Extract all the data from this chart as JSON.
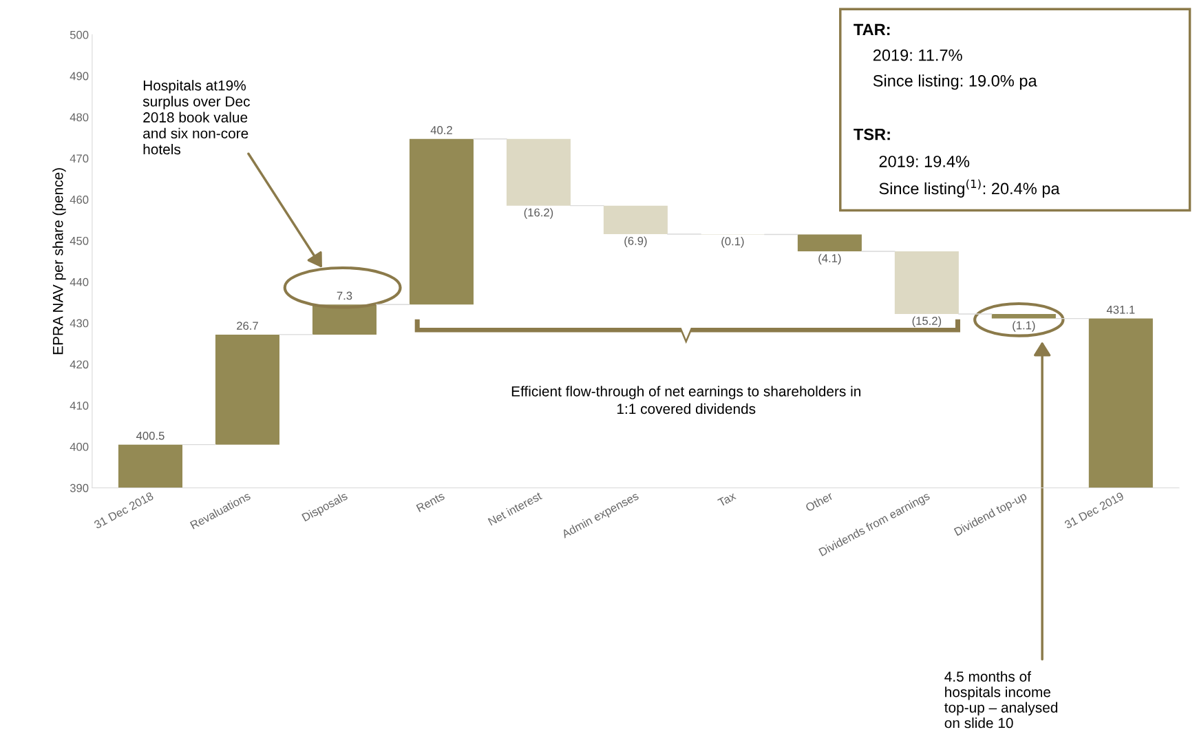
{
  "chart_data": {
    "type": "bar",
    "ylabel": "EPRA NAV per share (pence)",
    "categories": [
      "31 Dec 2018",
      "Revaluations",
      "Disposals",
      "Rents",
      "Net interest",
      "Admin expenses",
      "Tax",
      "Other",
      "Dividends from earnings",
      "Dividend top-up",
      "31 Dec 2019"
    ],
    "values": [
      400.5,
      26.7,
      7.3,
      40.2,
      -16.2,
      -6.9,
      -0.1,
      -4.1,
      -15.2,
      -1.1,
      431.1
    ],
    "base": [
      null,
      400.5,
      427.2,
      434.5,
      474.7,
      458.5,
      451.6,
      451.5,
      447.4,
      432.2,
      null
    ],
    "colors": [
      "#948a54",
      "#948a54",
      "#948a54",
      "#948a54",
      "#ddd9c3",
      "#ddd9c3",
      "#ddd9c3",
      "#948a54",
      "#ddd9c3",
      "#948a54",
      "#948a54"
    ],
    "value_labels": [
      "400.5",
      "26.7",
      "7.3",
      "40.2",
      "(16.2)",
      "(6.9)",
      "(0.1)",
      "(4.1)",
      "(15.2)",
      "(1.1)",
      "431.1"
    ],
    "ylim": [
      390,
      500
    ],
    "yticks": [
      390,
      400,
      410,
      420,
      430,
      440,
      450,
      460,
      470,
      480,
      490,
      500
    ],
    "grid": false,
    "annotations": [
      "Hospitals at19%\nsurplus over Dec\n2018 book value\nand six non-core\nhotels",
      "Efficient flow-through of net earnings to shareholders in\n1:1 covered dividends",
      "4.5 months of\nhospitals income\ntop-up – analysed\non slide 10",
      "TAR:",
      "2019: 11.7%",
      "Since listing: 19.0% pa",
      "TSR:",
      "2019: 19.4%",
      "Since listing$^{(1)}$: 20.4% pa"
    ]
  }
}
